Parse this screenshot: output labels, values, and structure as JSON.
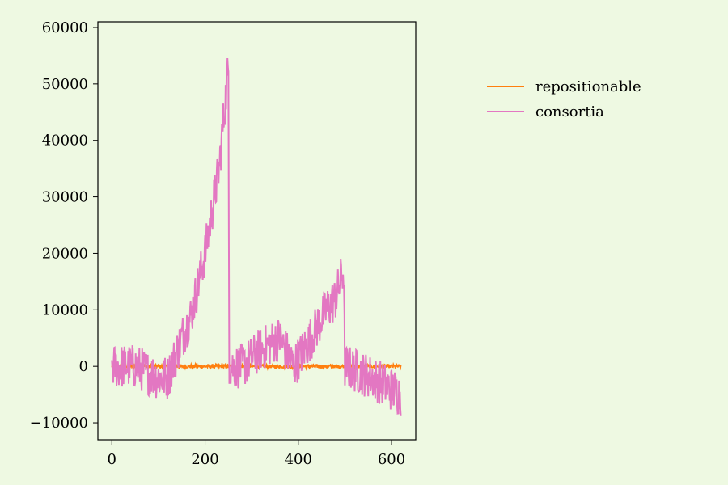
{
  "chart_data": {
    "type": "line",
    "xlim": [
      -30,
      652
    ],
    "ylim": [
      -13000,
      61000
    ],
    "xticks": [
      0,
      200,
      400,
      600
    ],
    "yticks": [
      -10000,
      0,
      10000,
      20000,
      30000,
      40000,
      50000,
      60000
    ],
    "xtick_labels": [
      "0",
      "200",
      "400",
      "600"
    ],
    "ytick_labels": [
      "−10000",
      "0",
      "10000",
      "20000",
      "30000",
      "40000",
      "50000",
      "60000"
    ],
    "legend_position": "right of plot, top",
    "series": [
      {
        "name": "repositionable",
        "color": "#ff7f0e",
        "x": [
          0,
          620
        ],
        "y": [
          0,
          0
        ],
        "noise_amplitude": 300
      },
      {
        "name": "consortia",
        "color": "#e377c2",
        "anchors_x": [
          0,
          50,
          100,
          120,
          150,
          170,
          200,
          230,
          250,
          252,
          280,
          320,
          360,
          390,
          420,
          460,
          480,
          497,
          500,
          530,
          560,
          600,
          620
        ],
        "anchors_y": [
          0,
          0,
          -2000,
          -2000,
          5000,
          9000,
          20000,
          35000,
          53000,
          0,
          0,
          3000,
          5000,
          0,
          4000,
          10000,
          12000,
          17000,
          0,
          -1000,
          -2000,
          -4000,
          -5000
        ],
        "noise_amplitude": 4000
      }
    ]
  }
}
